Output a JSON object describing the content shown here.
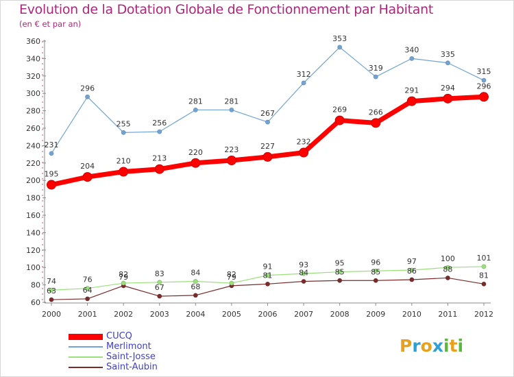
{
  "chart_data": {
    "type": "line",
    "title": "Evolution de la Dotation Globale de Fonctionnement par Habitant",
    "subtitle": "(en € et par an)",
    "xlabel": "",
    "ylabel": "",
    "categories": [
      "2000",
      "2001",
      "2002",
      "2003",
      "2004",
      "2005",
      "2006",
      "2007",
      "2008",
      "2009",
      "2010",
      "2011",
      "2012"
    ],
    "ylim": [
      60,
      360
    ],
    "yticks": [
      60,
      80,
      100,
      120,
      140,
      160,
      180,
      200,
      220,
      240,
      260,
      280,
      300,
      320,
      340,
      360
    ],
    "grid": false,
    "legend_position": "bottom-left",
    "series": [
      {
        "name": "CUCQ",
        "color": "#ff0000",
        "values": [
          195,
          204,
          210,
          213,
          220,
          223,
          227,
          232,
          269,
          266,
          291,
          294,
          296
        ]
      },
      {
        "name": "Merlimont",
        "color": "#6fa3d6",
        "values": [
          231,
          296,
          255,
          256,
          281,
          281,
          267,
          312,
          353,
          319,
          340,
          335,
          315
        ]
      },
      {
        "name": "Saint-Josse",
        "color": "#99e07a",
        "values": [
          74,
          76,
          82,
          83,
          84,
          82,
          91,
          93,
          95,
          96,
          97,
          100,
          101
        ]
      },
      {
        "name": "Saint-Aubin",
        "color": "#7a2a2a",
        "values": [
          63,
          64,
          79,
          67,
          68,
          79,
          81,
          84,
          85,
          85,
          86,
          88,
          81
        ]
      }
    ]
  },
  "logo": {
    "letters": [
      "P",
      "r",
      "o",
      "x",
      "i",
      "t",
      "i"
    ],
    "colors": [
      "#e8a11c",
      "#2f9fd8",
      "#e8a11c",
      "#2f9fd8",
      "#5cb83c",
      "#e8a11c",
      "#5cb83c"
    ]
  }
}
